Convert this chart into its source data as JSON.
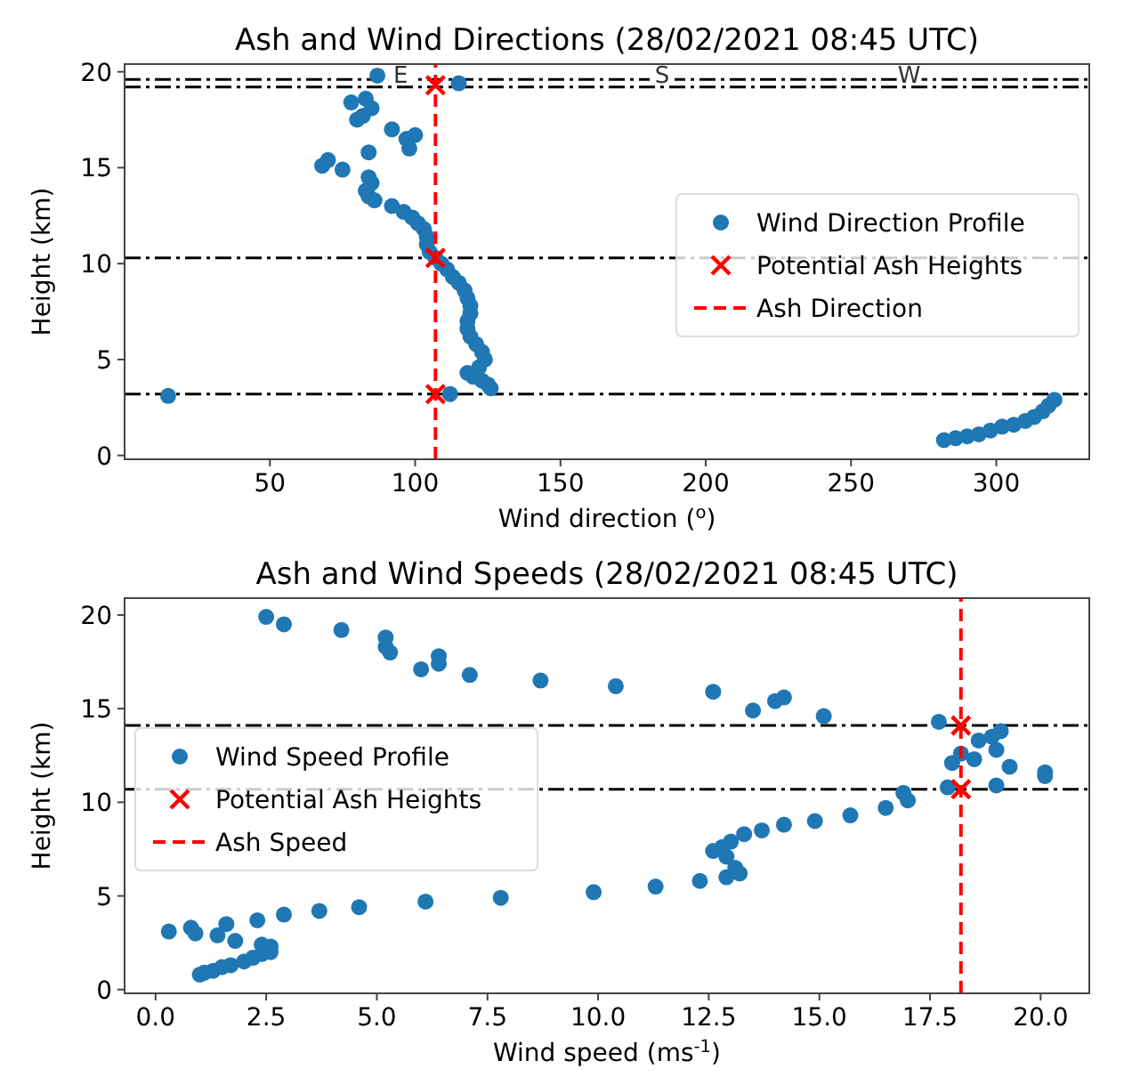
{
  "chart_data": [
    {
      "type": "scatter",
      "title": "Ash and Wind Directions (28/02/2021 08:45 UTC)",
      "xlabel": "Wind direction ($^{o}$)",
      "ylabel": "Height (km)",
      "xlim": [
        0,
        332
      ],
      "ylim": [
        -0.2,
        20.4
      ],
      "xticks": [
        50,
        100,
        150,
        200,
        250,
        300
      ],
      "yticks": [
        0,
        5,
        10,
        15,
        20
      ],
      "legend": "right",
      "series": [
        {
          "name": "Wind Direction Profile",
          "color": "#1f77b4",
          "marker": "circle",
          "x": [
            87,
            115,
            78,
            83,
            85,
            80,
            82,
            92,
            97,
            100,
            98,
            84,
            70,
            68,
            75,
            84,
            85,
            83,
            84,
            86,
            92,
            96,
            99,
            101,
            103,
            104,
            104,
            105,
            107,
            109,
            111,
            113,
            115,
            117,
            118,
            119,
            119,
            118,
            118,
            119,
            121,
            123,
            124,
            122,
            118,
            120,
            123,
            125,
            126,
            112,
            15,
            320,
            318,
            316,
            313,
            310,
            306,
            302,
            298,
            294,
            290,
            286,
            282
          ],
          "values": [
            19.8,
            19.4,
            18.4,
            18.6,
            18.1,
            17.5,
            17.7,
            17.0,
            16.5,
            16.7,
            16.0,
            15.8,
            15.4,
            15.1,
            14.9,
            14.5,
            14.2,
            13.8,
            13.5,
            13.3,
            13.0,
            12.7,
            12.4,
            12.1,
            11.8,
            11.4,
            11.0,
            10.6,
            10.3,
            10.0,
            9.7,
            9.3,
            9.0,
            8.6,
            8.2,
            7.8,
            7.4,
            7.0,
            6.6,
            6.2,
            5.8,
            5.4,
            5.0,
            4.6,
            4.3,
            4.1,
            3.9,
            3.7,
            3.5,
            3.2,
            3.1,
            2.9,
            2.6,
            2.3,
            2.0,
            1.8,
            1.6,
            1.5,
            1.3,
            1.1,
            1.0,
            0.9,
            0.8
          ]
        },
        {
          "name": "Potential Ash Heights",
          "color": "#ff0000",
          "marker": "cross",
          "x": [
            107,
            107,
            107
          ],
          "values": [
            19.3,
            10.3,
            3.2
          ]
        },
        {
          "name": "Ash Direction",
          "type": "line",
          "color": "#ff0000",
          "line_style": "dashed",
          "marker": "none",
          "x": [
            107,
            107
          ],
          "values": [
            -0.2,
            20.4
          ]
        }
      ],
      "ref_lines": [
        {
          "axis": "y",
          "value": 3.2,
          "color": "#000000",
          "line_style": "dashdot"
        },
        {
          "axis": "y",
          "value": 10.3,
          "color": "#000000",
          "line_style": "dashdot"
        },
        {
          "axis": "y",
          "value": 19.2,
          "color": "#000000",
          "line_style": "dashdot"
        },
        {
          "axis": "y",
          "value": 19.6,
          "color": "#000000",
          "line_style": "dashdot"
        }
      ],
      "annotations": [
        {
          "text": "E",
          "x": 95,
          "y": 19.9
        },
        {
          "text": "S",
          "x": 185,
          "y": 19.9
        },
        {
          "text": "W",
          "x": 270,
          "y": 19.9
        }
      ]
    },
    {
      "type": "scatter",
      "title": "Ash and Wind Speeds (28/02/2021 08:45 UTC)",
      "xlabel": "Wind speed (ms$^{-1}$)",
      "ylabel": "Height (km)",
      "xlim": [
        -0.7,
        21.1
      ],
      "ylim": [
        -0.2,
        20.9
      ],
      "xticks": [
        {
          "value": 0,
          "label": "0.0"
        },
        {
          "value": 2.5,
          "label": "2.5"
        },
        {
          "value": 5,
          "label": "5.0"
        },
        {
          "value": 7.5,
          "label": "7.5"
        },
        {
          "value": 10,
          "label": "10.0"
        },
        {
          "value": 12.5,
          "label": "12.5"
        },
        {
          "value": 15,
          "label": "15.0"
        },
        {
          "value": 17.5,
          "label": "17.5"
        },
        {
          "value": 20,
          "label": "20.0"
        }
      ],
      "yticks": [
        0,
        5,
        10,
        15,
        20
      ],
      "legend": "left",
      "series": [
        {
          "name": "Wind Speed Profile",
          "color": "#1f77b4",
          "marker": "circle",
          "x": [
            2.5,
            2.9,
            4.2,
            5.2,
            5.2,
            5.3,
            6.0,
            6.4,
            6.4,
            7.1,
            8.7,
            10.4,
            12.6,
            13.5,
            14.0,
            14.2,
            15.1,
            17.7,
            19.1,
            18.9,
            18.6,
            19.0,
            18.2,
            18.5,
            18.0,
            19.3,
            19.0,
            20.1,
            20.1,
            17.9,
            16.9,
            17.0,
            16.5,
            15.7,
            14.9,
            14.2,
            13.7,
            13.3,
            13.0,
            12.8,
            12.6,
            12.9,
            13.1,
            13.2,
            12.9,
            12.3,
            11.3,
            9.9,
            7.8,
            6.1,
            4.6,
            3.7,
            2.9,
            2.3,
            1.6,
            0.8,
            0.3,
            0.9,
            1.4,
            1.8,
            2.4,
            2.6,
            2.6,
            2.4,
            2.2,
            2.0,
            1.7,
            1.5,
            1.3,
            1.1,
            1.0
          ],
          "values": [
            19.9,
            19.5,
            19.2,
            18.8,
            18.3,
            18.0,
            17.1,
            17.8,
            17.4,
            16.8,
            16.5,
            16.2,
            15.9,
            14.9,
            15.4,
            15.6,
            14.6,
            14.3,
            13.8,
            13.5,
            13.3,
            12.8,
            12.6,
            12.3,
            12.1,
            11.9,
            10.9,
            11.4,
            11.6,
            10.8,
            10.5,
            10.1,
            9.7,
            9.3,
            9.0,
            8.8,
            8.5,
            8.3,
            7.9,
            7.6,
            7.4,
            7.1,
            6.5,
            6.2,
            6.0,
            5.8,
            5.5,
            5.2,
            4.9,
            4.7,
            4.4,
            4.2,
            4.0,
            3.7,
            3.5,
            3.3,
            3.1,
            3.0,
            2.9,
            2.6,
            2.4,
            2.3,
            2.0,
            1.9,
            1.7,
            1.5,
            1.3,
            1.2,
            1.0,
            0.9,
            0.8
          ]
        },
        {
          "name": "Potential Ash Heights",
          "color": "#ff0000",
          "marker": "cross",
          "x": [
            18.2,
            18.2
          ],
          "values": [
            14.1,
            10.7
          ]
        },
        {
          "name": "Ash Speed",
          "type": "line",
          "color": "#ff0000",
          "line_style": "dashed",
          "marker": "none",
          "x": [
            18.2,
            18.2
          ],
          "values": [
            -0.2,
            20.9
          ]
        }
      ],
      "ref_lines": [
        {
          "axis": "y",
          "value": 14.1,
          "color": "#000000",
          "line_style": "dashdot"
        },
        {
          "axis": "y",
          "value": 10.7,
          "color": "#000000",
          "line_style": "dashdot"
        }
      ]
    }
  ]
}
